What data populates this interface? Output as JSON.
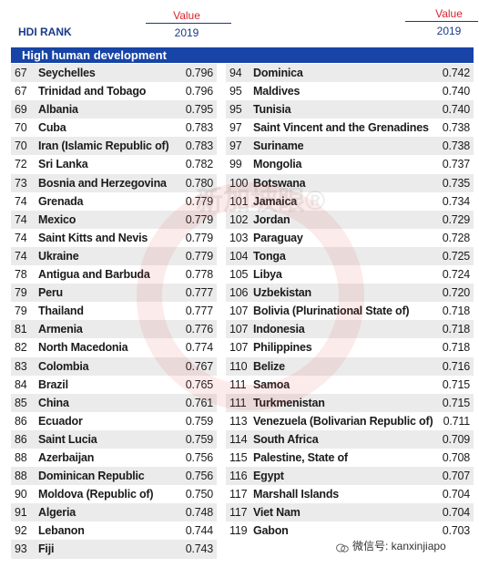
{
  "header": {
    "rank_label": "HDI RANK",
    "value_label": "Value",
    "year_label": "2019"
  },
  "section_title": "High human development",
  "left_rows": [
    {
      "rank": "67",
      "name": "Seychelles",
      "value": "0.796"
    },
    {
      "rank": "67",
      "name": "Trinidad and Tobago",
      "value": "0.796"
    },
    {
      "rank": "69",
      "name": "Albania",
      "value": "0.795"
    },
    {
      "rank": "70",
      "name": "Cuba",
      "value": "0.783"
    },
    {
      "rank": "70",
      "name": "Iran (Islamic Republic of)",
      "value": "0.783"
    },
    {
      "rank": "72",
      "name": "Sri Lanka",
      "value": "0.782"
    },
    {
      "rank": "73",
      "name": "Bosnia and Herzegovina",
      "value": "0.780"
    },
    {
      "rank": "74",
      "name": "Grenada",
      "value": "0.779"
    },
    {
      "rank": "74",
      "name": "Mexico",
      "value": "0.779"
    },
    {
      "rank": "74",
      "name": "Saint Kitts and Nevis",
      "value": "0.779"
    },
    {
      "rank": "74",
      "name": "Ukraine",
      "value": "0.779"
    },
    {
      "rank": "78",
      "name": "Antigua and Barbuda",
      "value": "0.778"
    },
    {
      "rank": "79",
      "name": "Peru",
      "value": "0.777"
    },
    {
      "rank": "79",
      "name": "Thailand",
      "value": "0.777"
    },
    {
      "rank": "81",
      "name": "Armenia",
      "value": "0.776"
    },
    {
      "rank": "82",
      "name": "North Macedonia",
      "value": "0.774"
    },
    {
      "rank": "83",
      "name": "Colombia",
      "value": "0.767"
    },
    {
      "rank": "84",
      "name": "Brazil",
      "value": "0.765"
    },
    {
      "rank": "85",
      "name": "China",
      "value": "0.761"
    },
    {
      "rank": "86",
      "name": "Ecuador",
      "value": "0.759"
    },
    {
      "rank": "86",
      "name": "Saint Lucia",
      "value": "0.759"
    },
    {
      "rank": "88",
      "name": "Azerbaijan",
      "value": "0.756"
    },
    {
      "rank": "88",
      "name": "Dominican Republic",
      "value": "0.756"
    },
    {
      "rank": "90",
      "name": "Moldova (Republic of)",
      "value": "0.750"
    },
    {
      "rank": "91",
      "name": "Algeria",
      "value": "0.748"
    },
    {
      "rank": "92",
      "name": "Lebanon",
      "value": "0.744"
    },
    {
      "rank": "93",
      "name": "Fiji",
      "value": "0.743"
    }
  ],
  "right_rows": [
    {
      "rank": "94",
      "name": "Dominica",
      "value": "0.742"
    },
    {
      "rank": "95",
      "name": "Maldives",
      "value": "0.740"
    },
    {
      "rank": "95",
      "name": "Tunisia",
      "value": "0.740"
    },
    {
      "rank": "97",
      "name": "Saint Vincent and the Grenadines",
      "value": "0.738"
    },
    {
      "rank": "97",
      "name": "Suriname",
      "value": "0.738"
    },
    {
      "rank": "99",
      "name": "Mongolia",
      "value": "0.737"
    },
    {
      "rank": "100",
      "name": "Botswana",
      "value": "0.735"
    },
    {
      "rank": "101",
      "name": "Jamaica",
      "value": "0.734"
    },
    {
      "rank": "102",
      "name": "Jordan",
      "value": "0.729"
    },
    {
      "rank": "103",
      "name": "Paraguay",
      "value": "0.728"
    },
    {
      "rank": "104",
      "name": "Tonga",
      "value": "0.725"
    },
    {
      "rank": "105",
      "name": "Libya",
      "value": "0.724"
    },
    {
      "rank": "106",
      "name": "Uzbekistan",
      "value": "0.720"
    },
    {
      "rank": "107",
      "name": "Bolivia (Plurinational State of)",
      "value": "0.718"
    },
    {
      "rank": "107",
      "name": "Indonesia",
      "value": "0.718"
    },
    {
      "rank": "107",
      "name": "Philippines",
      "value": "0.718"
    },
    {
      "rank": "110",
      "name": "Belize",
      "value": "0.716"
    },
    {
      "rank": "111",
      "name": "Samoa",
      "value": "0.715"
    },
    {
      "rank": "111",
      "name": "Turkmenistan",
      "value": "0.715"
    },
    {
      "rank": "113",
      "name": "Venezuela (Bolivarian Republic of)",
      "value": "0.711"
    },
    {
      "rank": "114",
      "name": "South Africa",
      "value": "0.709"
    },
    {
      "rank": "115",
      "name": "Palestine, State of",
      "value": "0.708"
    },
    {
      "rank": "116",
      "name": "Egypt",
      "value": "0.707"
    },
    {
      "rank": "117",
      "name": "Marshall Islands",
      "value": "0.704"
    },
    {
      "rank": "117",
      "name": "Viet Nam",
      "value": "0.704"
    },
    {
      "rank": "119",
      "name": "Gabon",
      "value": "0.703"
    }
  ],
  "watermark_text": "新加坡眼®",
  "credit": "微信号: kanxinjiapo",
  "colors": {
    "accent_blue": "#1744a6",
    "value_red": "#d8242f",
    "row_shade": "#ebebeb"
  }
}
